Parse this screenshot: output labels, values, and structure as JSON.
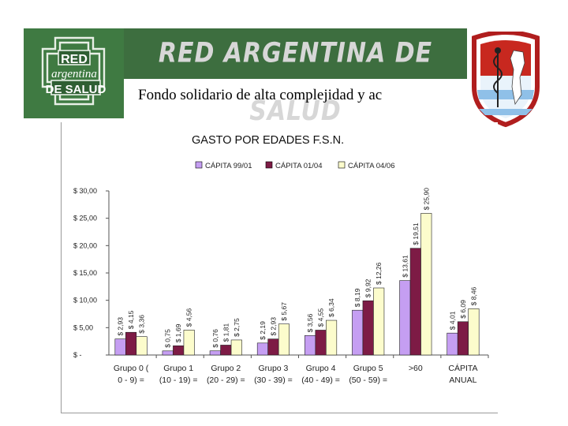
{
  "header": {
    "logo_left_text": [
      "RED",
      "argentina",
      "DE SALUD"
    ],
    "banner_title": "RED ARGENTINA DE SALUD",
    "subtitle": "Fondo solidario de alta complejidad y ac"
  },
  "colors": {
    "banner_green": "#3d6e3f",
    "series": [
      "#c59ef2",
      "#7d1b45",
      "#fcfccc"
    ]
  },
  "chart_data": {
    "type": "bar",
    "title": "GASTO POR EDADES F.S.N.",
    "legend_position": "top",
    "grid": false,
    "ylim": [
      0,
      30
    ],
    "yticks": [
      0,
      5,
      10,
      15,
      20,
      25,
      30
    ],
    "ytick_labels": [
      "$ -",
      "$ 5,00",
      "$ 10,00",
      "$ 15,00",
      "$ 20,00",
      "$ 25,00",
      "$ 30,00"
    ],
    "categories": [
      [
        "Grupo 0 (",
        "0 - 9) ="
      ],
      [
        "Grupo 1",
        "(10 - 19) ="
      ],
      [
        "Grupo 2",
        "(20 - 29) ="
      ],
      [
        "Grupo 3",
        "(30 - 39) ="
      ],
      [
        "Grupo 4",
        "(40 - 49) ="
      ],
      [
        "Grupo 5",
        "(50 - 59) ="
      ],
      [
        ">60",
        ""
      ],
      [
        "CÁPITA",
        "ANUAL"
      ]
    ],
    "series": [
      {
        "name": "CÁPITA 99/01",
        "values": [
          2.93,
          0.75,
          0.76,
          2.19,
          3.56,
          8.19,
          13.61,
          4.01
        ],
        "labels": [
          "$ 2,93",
          "$ 0,75",
          "$ 0,76",
          "$ 2,19",
          "$ 3,56",
          "$ 8,19",
          "$ 13,61",
          "$ 4,01"
        ]
      },
      {
        "name": "CÁPITA 01/04",
        "values": [
          4.15,
          1.69,
          1.81,
          2.93,
          4.55,
          9.92,
          19.51,
          6.09
        ],
        "labels": [
          "$ 4,15",
          "$ 1,69",
          "$ 1,81",
          "$ 2,93",
          "$ 4,55",
          "$ 9,92",
          "$ 19,51",
          "$ 6,09"
        ]
      },
      {
        "name": "CÁPITA 04/06",
        "values": [
          3.36,
          4.56,
          2.75,
          5.67,
          6.34,
          12.26,
          25.9,
          8.46
        ],
        "labels": [
          "$ 3,36",
          "$ 4,56",
          "$ 2,75",
          "$ 5,67",
          "$ 6,34",
          "$ 12,26",
          "$ 25,90",
          "$ 8,46"
        ]
      }
    ]
  }
}
